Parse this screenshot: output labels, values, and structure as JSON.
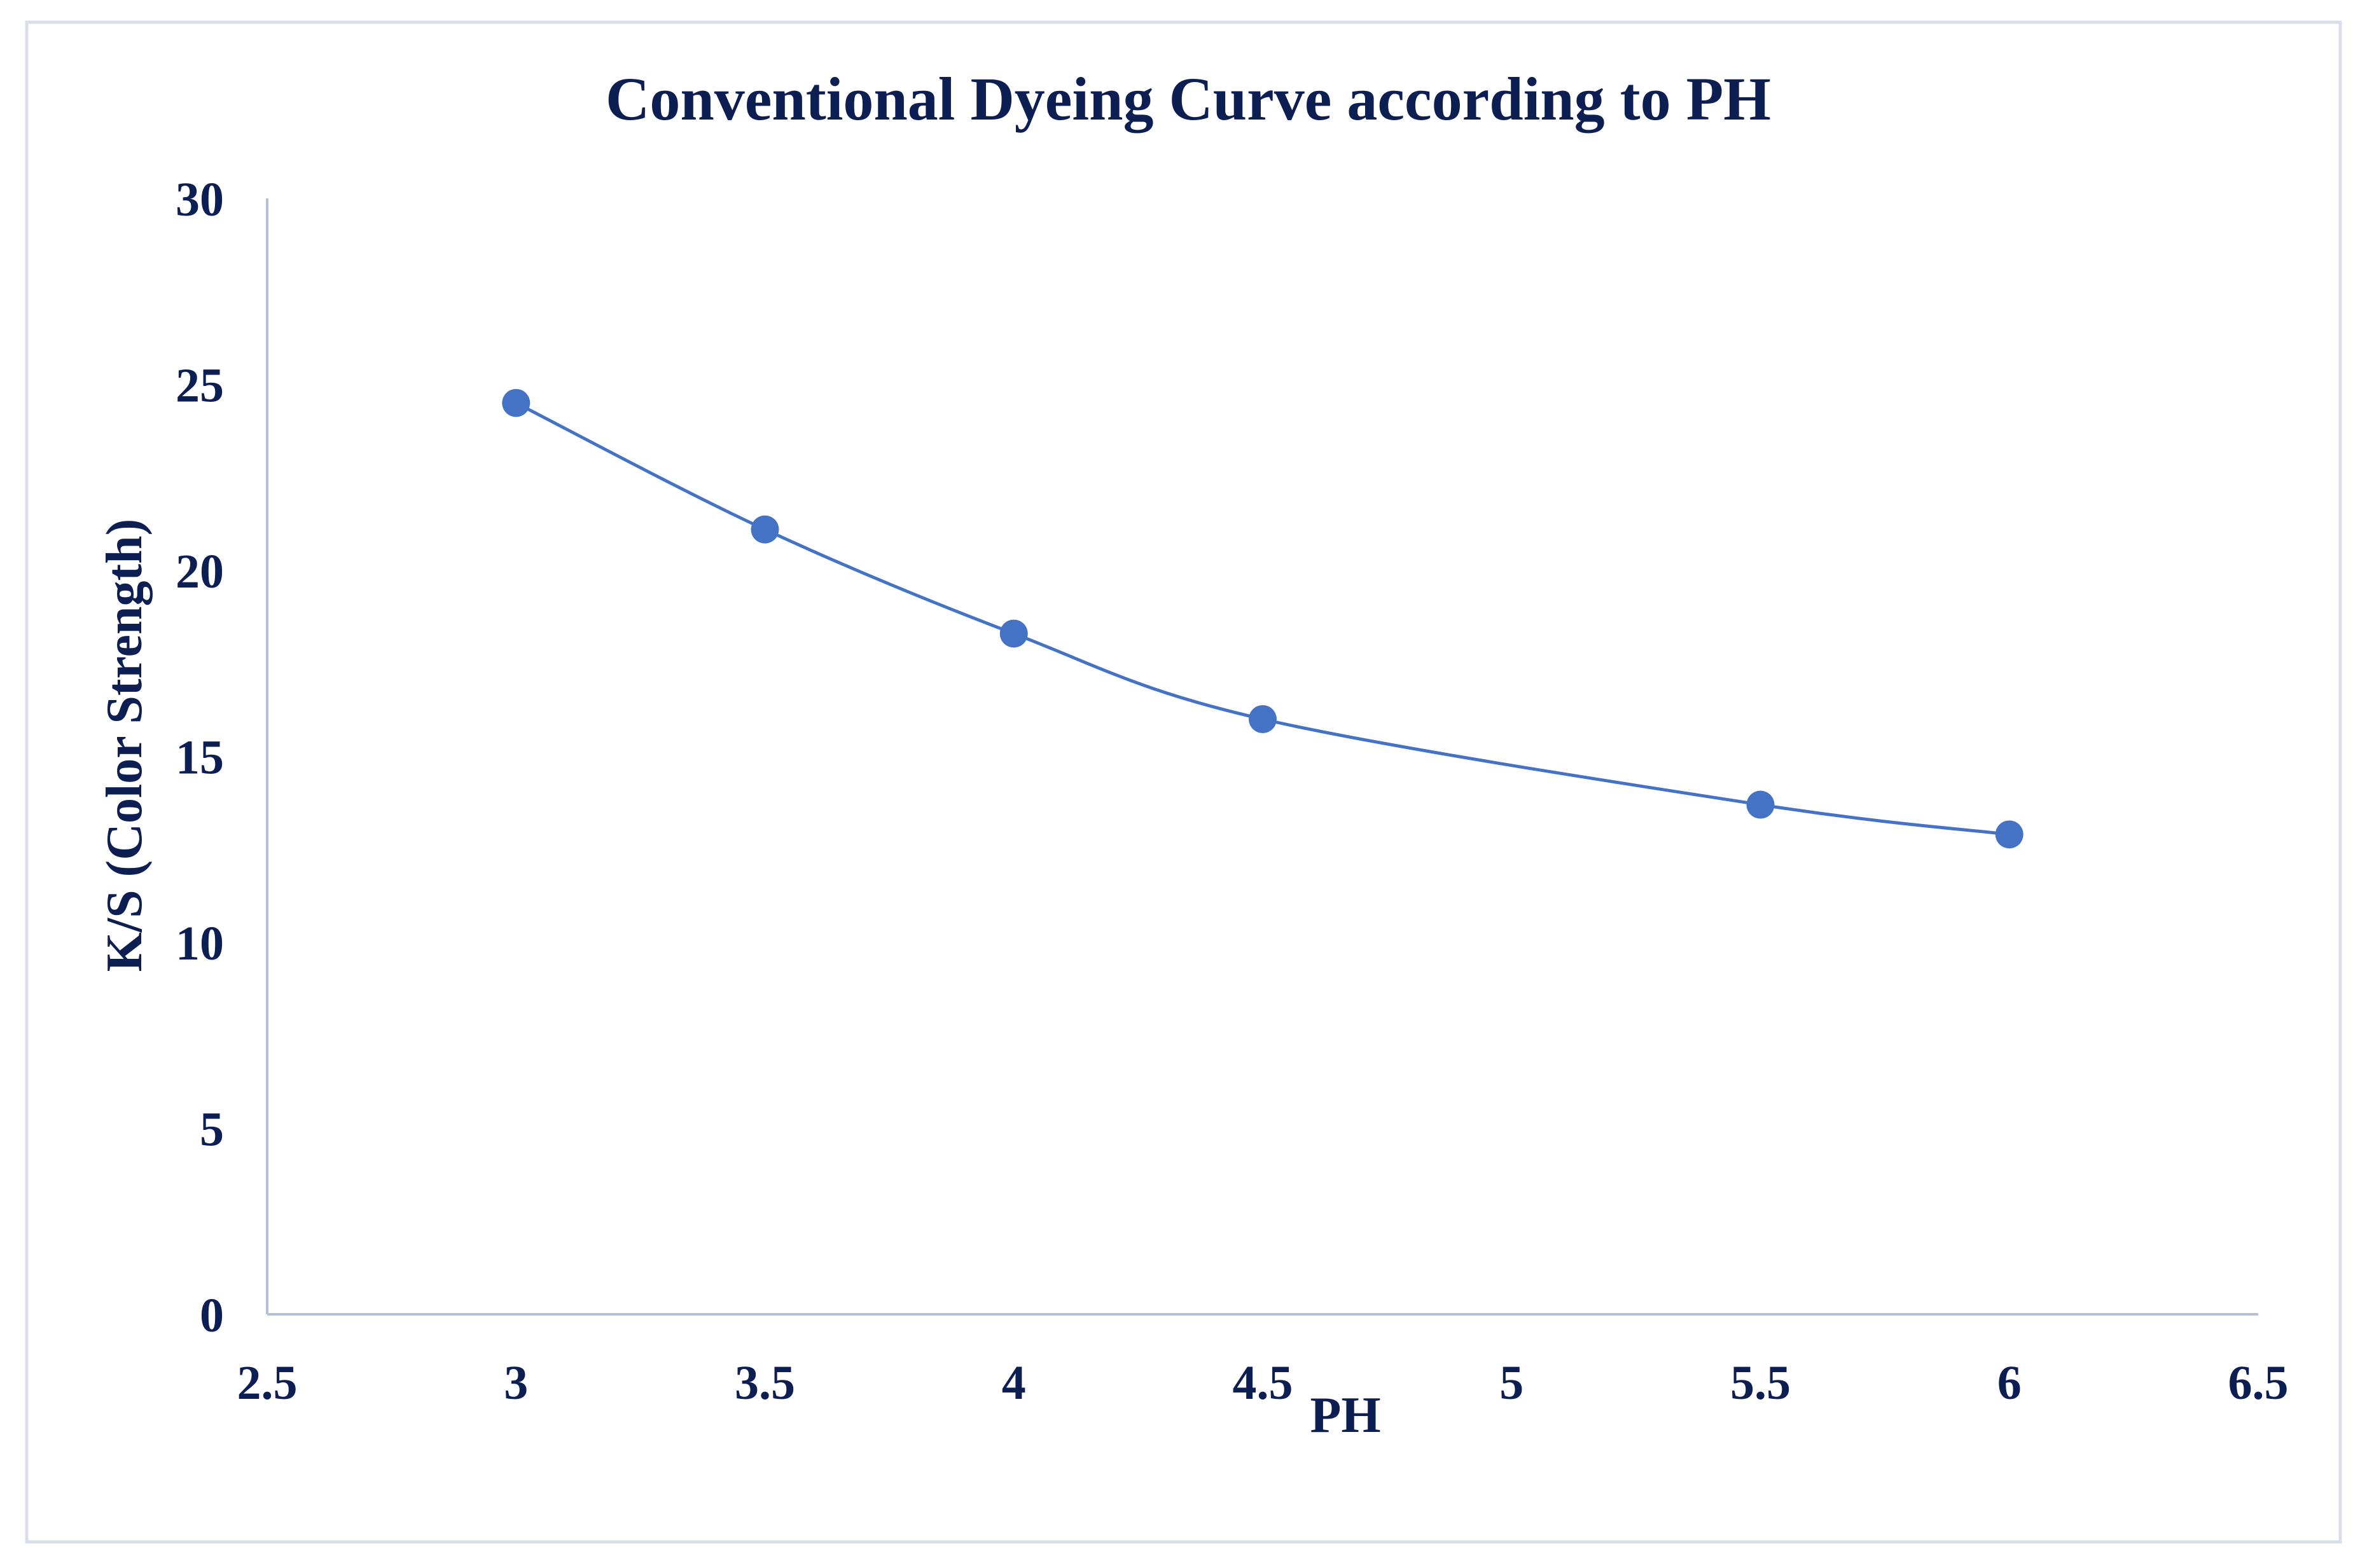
{
  "chart_data": {
    "type": "scatter",
    "title": "Conventional Dyeing Curve according to PH",
    "xlabel": "PH",
    "ylabel": "K/S (Color Strength)",
    "xlim": [
      2.5,
      6.5
    ],
    "ylim": [
      0,
      30
    ],
    "x_ticks": [
      "2.5",
      "3",
      "3.5",
      "4",
      "4.5",
      "5",
      "5.5",
      "6",
      "6.5"
    ],
    "y_ticks": [
      "0",
      "5",
      "10",
      "15",
      "20",
      "25",
      "30"
    ],
    "grid": false,
    "smooth_line": true,
    "series": [
      {
        "name": "K/S",
        "x": [
          3,
          3.5,
          4,
          4.5,
          5.5,
          6
        ],
        "y": [
          24.5,
          21.1,
          18.3,
          16.0,
          13.7,
          12.9
        ]
      }
    ],
    "colors": {
      "text": "#0d1f52",
      "series": "#4472c4",
      "axis": "#b4bfd6",
      "border": "#d9dee8"
    }
  }
}
